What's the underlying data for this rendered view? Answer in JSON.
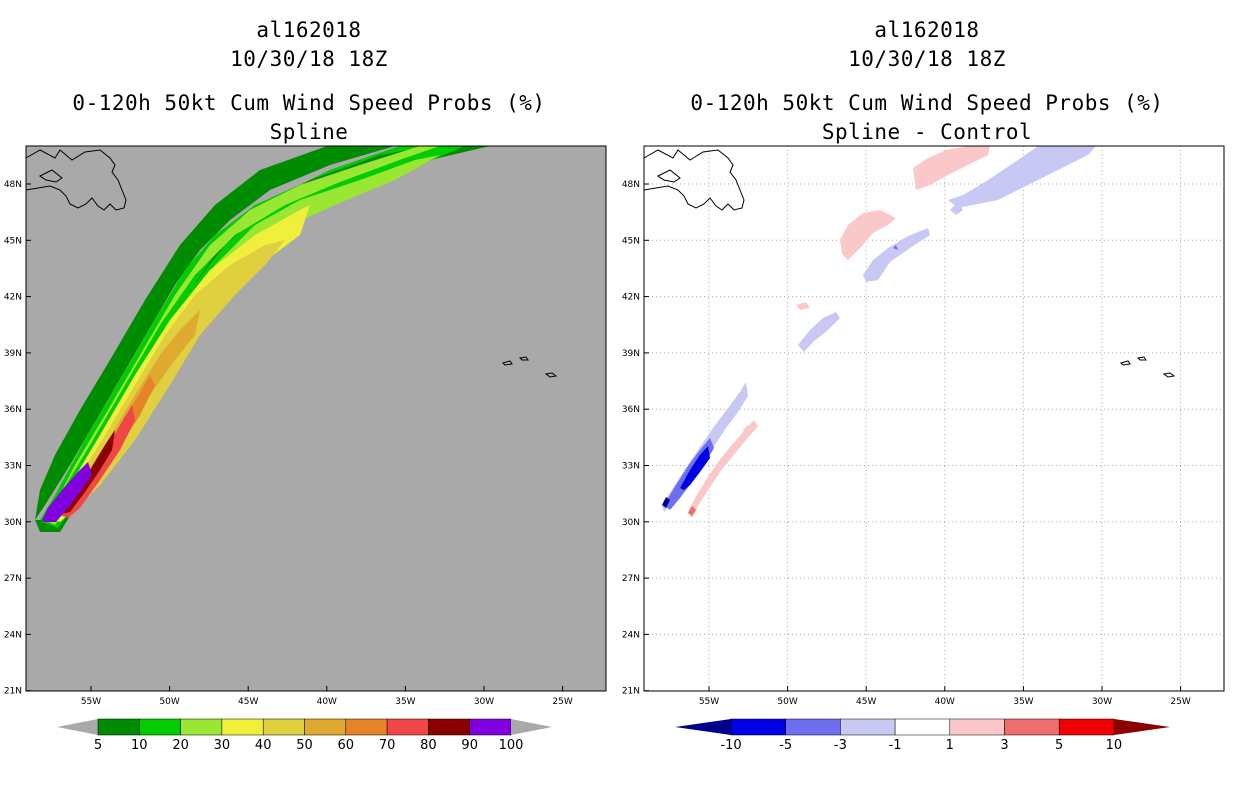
{
  "left_panel": {
    "storm_id": "al162018",
    "datetime": "10/30/18 18Z",
    "product": "0-120h 50kt Cum Wind Speed Probs (%)",
    "subtitle": "Spline",
    "background_color": "#a9a9a9",
    "colorbar": {
      "labels": [
        "5",
        "10",
        "20",
        "30",
        "40",
        "50",
        "60",
        "70",
        "80",
        "90",
        "100"
      ],
      "colors": [
        "#008c00",
        "#00cc00",
        "#99e633",
        "#f0f03c",
        "#e0d040",
        "#e0aa30",
        "#e68228",
        "#f04646",
        "#8b0000",
        "#8000e0"
      ],
      "extension_color": "#a9a9a9"
    }
  },
  "right_panel": {
    "storm_id": "al162018",
    "datetime": "10/30/18 18Z",
    "product": "0-120h 50kt Cum Wind Speed Probs (%)",
    "subtitle": "Spline - Control",
    "background_color": "#ffffff",
    "colorbar": {
      "labels": [
        "-10",
        "-5",
        "-3",
        "-1",
        "1",
        "3",
        "5",
        "10"
      ],
      "colors": [
        "#0000e6",
        "#6e6ef0",
        "#c8c8f5",
        "#ffffff",
        "#fac8c8",
        "#f06e6e",
        "#f00000"
      ],
      "low_extension_color": "#00008b",
      "high_extension_color": "#8b0000"
    }
  },
  "map": {
    "lat_labels": [
      "48N",
      "45N",
      "42N",
      "39N",
      "36N",
      "33N",
      "30N",
      "27N",
      "24N",
      "21N"
    ],
    "lon_labels": [
      "55W",
      "50W",
      "45W",
      "40W",
      "35W",
      "30W",
      "25W"
    ]
  }
}
